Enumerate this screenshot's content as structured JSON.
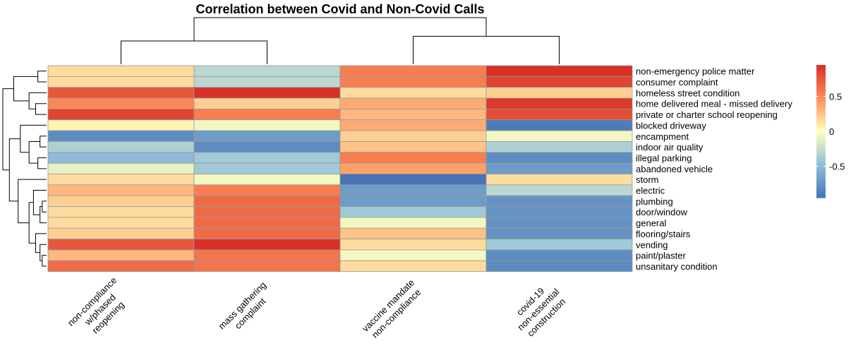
{
  "chart_data": {
    "type": "heatmap",
    "title": "Correlation between Covid and Non-Covid Calls",
    "columns": [
      [
        "non-compliance",
        "w/phased",
        "reopening"
      ],
      [
        "mass gathering",
        "complaint"
      ],
      [
        "vaccine mandate",
        "non-compliance"
      ],
      [
        "covid-19",
        "non-essential",
        "construction"
      ]
    ],
    "rows": [
      "non-emergency police matter",
      "consumer complaint",
      "homeless street condition",
      "home delivered meal - missed delivery",
      "private or charter school reopening",
      "blocked driveway",
      "encampment",
      "indoor air quality",
      "illegal parking",
      "abandoned vehicle",
      "storm",
      "electric",
      "plumbing",
      "door/window",
      "general",
      "flooring/stairs",
      "vending",
      "paint/plaster",
      "unsanitary condition"
    ],
    "values": [
      [
        0.15,
        -0.3,
        0.55,
        0.95
      ],
      [
        0.15,
        -0.3,
        0.55,
        0.85
      ],
      [
        0.75,
        0.95,
        0.15,
        0.2
      ],
      [
        0.5,
        0.2,
        0.35,
        0.9
      ],
      [
        0.85,
        0.55,
        0.3,
        0.8
      ],
      [
        0.05,
        -0.05,
        0.35,
        -0.9
      ],
      [
        -0.8,
        -0.7,
        0.2,
        -0.05
      ],
      [
        -0.35,
        -0.8,
        0.25,
        -0.35
      ],
      [
        -0.5,
        -0.4,
        0.55,
        -0.8
      ],
      [
        -0.1,
        -0.4,
        0.4,
        -0.7
      ],
      [
        0.15,
        -0.05,
        -0.95,
        0.15
      ],
      [
        0.3,
        0.55,
        -0.7,
        -0.3
      ],
      [
        0.2,
        0.65,
        -0.7,
        -0.75
      ],
      [
        0.15,
        0.65,
        -0.4,
        -0.75
      ],
      [
        0.15,
        0.65,
        -0.05,
        -0.75
      ],
      [
        0.2,
        0.65,
        0.25,
        -0.75
      ],
      [
        0.75,
        0.95,
        0.15,
        -0.4
      ],
      [
        0.3,
        0.6,
        -0.05,
        -0.8
      ],
      [
        0.65,
        0.6,
        0.15,
        -0.8
      ]
    ],
    "legend": {
      "placement": "right",
      "range": [
        -0.95,
        0.95
      ],
      "ticks": [
        {
          "value": 0.5,
          "label": "0.5"
        },
        {
          "value": 0,
          "label": "0"
        },
        {
          "value": -0.5,
          "label": "-0.5"
        }
      ]
    },
    "color_scale": [
      "#4575b4",
      "#91bfdb",
      "#ffffbf",
      "#fc8d59",
      "#d73027"
    ],
    "grid_color": "#999999",
    "column_dendrogram": {
      "merges": [
        [
          0,
          1
        ],
        [
          2,
          3
        ],
        [
          4,
          5
        ]
      ],
      "heights": [
        0.5,
        0.6,
        1.0
      ]
    },
    "row_dendrogram": {
      "merges": [
        [
          0,
          1
        ],
        [
          3,
          4
        ],
        [
          2,
          20
        ],
        [
          19,
          21
        ],
        [
          6,
          7
        ],
        [
          8,
          9
        ],
        [
          23,
          24
        ],
        [
          5,
          25
        ],
        [
          12,
          13
        ],
        [
          14,
          27
        ],
        [
          11,
          28
        ],
        [
          17,
          18
        ],
        [
          16,
          30
        ],
        [
          15,
          31
        ],
        [
          29,
          32
        ],
        [
          10,
          33
        ],
        [
          26,
          34
        ],
        [
          22,
          35
        ]
      ],
      "heights": [
        0.2,
        0.25,
        0.4,
        0.75,
        0.15,
        0.2,
        0.4,
        0.6,
        0.1,
        0.15,
        0.3,
        0.1,
        0.15,
        0.25,
        0.4,
        0.65,
        0.85,
        1.0
      ]
    }
  }
}
